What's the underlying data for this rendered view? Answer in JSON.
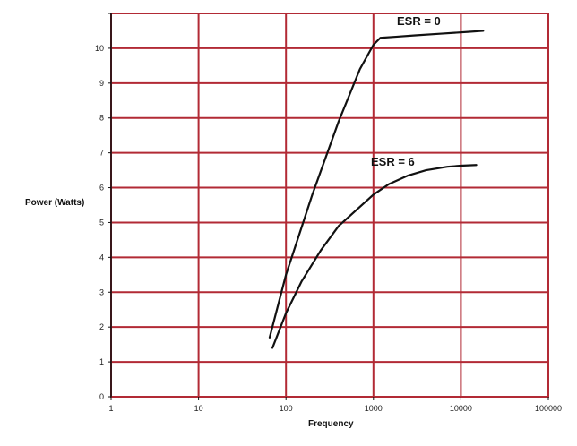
{
  "chart_data": {
    "type": "line",
    "title": "",
    "xlabel": "Frequency",
    "ylabel": "Power (Watts)",
    "xscale": "log",
    "xlim": [
      1,
      100000
    ],
    "ylim": [
      0,
      11
    ],
    "grid": true,
    "legend": "none",
    "x_ticks": [
      "1",
      "10",
      "100",
      "1000",
      "10000",
      "100000"
    ],
    "y_ticks": [
      "0",
      "1",
      "2",
      "3",
      "4",
      "5",
      "6",
      "7",
      "8",
      "9",
      "10"
    ],
    "colors": {
      "grid": "#b22a35",
      "series": "#111111",
      "axis": "#111111"
    },
    "series": [
      {
        "name": "ESR = 0",
        "x": [
          65,
          100,
          200,
          400,
          700,
          1000,
          1200,
          1800,
          3000,
          6000,
          12000,
          18000
        ],
        "y": [
          1.7,
          3.5,
          5.8,
          7.9,
          9.4,
          10.1,
          10.3,
          10.33,
          10.37,
          10.42,
          10.47,
          10.5
        ]
      },
      {
        "name": "ESR = 6",
        "x": [
          70,
          100,
          150,
          250,
          400,
          700,
          1000,
          1500,
          2500,
          4000,
          7000,
          10000,
          15000
        ],
        "y": [
          1.4,
          2.4,
          3.3,
          4.2,
          4.9,
          5.45,
          5.8,
          6.1,
          6.35,
          6.5,
          6.6,
          6.63,
          6.65
        ]
      }
    ]
  }
}
